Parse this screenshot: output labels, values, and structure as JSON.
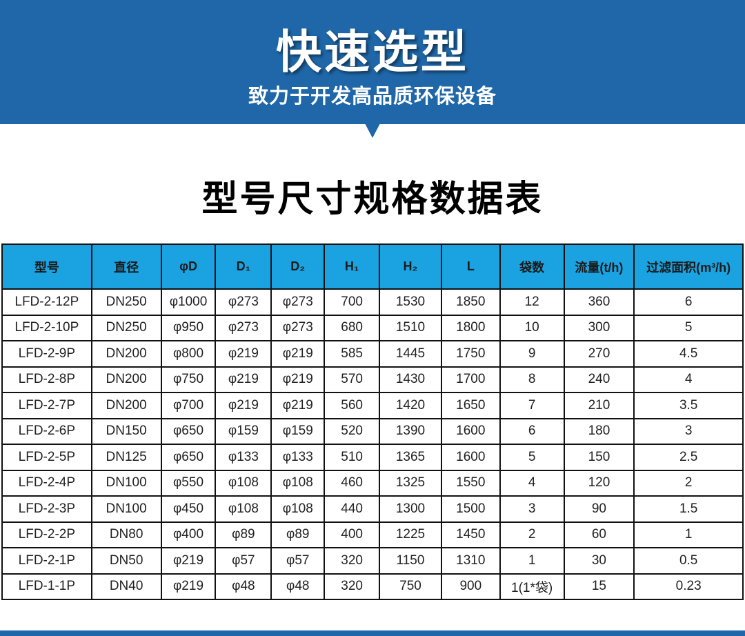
{
  "banner": {
    "title": "快速选型",
    "subtitle": "致力于开发高品质环保设备"
  },
  "section_title": "型号尺寸规格数据表",
  "table": {
    "headers": [
      "型号",
      "直径",
      "φD",
      "D₁",
      "D₂",
      "H₁",
      "H₂",
      "L",
      "袋数",
      "流量(t/h)",
      "过滤面积(m³/h)"
    ],
    "rows": [
      [
        "LFD-2-12P",
        "DN250",
        "φ1000",
        "φ273",
        "φ273",
        "700",
        "1530",
        "1850",
        "12",
        "360",
        "6"
      ],
      [
        "LFD-2-10P",
        "DN250",
        "φ950",
        "φ273",
        "φ273",
        "680",
        "1510",
        "1800",
        "10",
        "300",
        "5"
      ],
      [
        "LFD-2-9P",
        "DN200",
        "φ800",
        "φ219",
        "φ219",
        "585",
        "1445",
        "1750",
        "9",
        "270",
        "4.5"
      ],
      [
        "LFD-2-8P",
        "DN200",
        "φ750",
        "φ219",
        "φ219",
        "570",
        "1430",
        "1700",
        "8",
        "240",
        "4"
      ],
      [
        "LFD-2-7P",
        "DN200",
        "φ700",
        "φ219",
        "φ219",
        "560",
        "1420",
        "1650",
        "7",
        "210",
        "3.5"
      ],
      [
        "LFD-2-6P",
        "DN150",
        "φ650",
        "φ159",
        "φ159",
        "520",
        "1390",
        "1600",
        "6",
        "180",
        "3"
      ],
      [
        "LFD-2-5P",
        "DN125",
        "φ650",
        "φ133",
        "φ133",
        "510",
        "1365",
        "1600",
        "5",
        "150",
        "2.5"
      ],
      [
        "LFD-2-4P",
        "DN100",
        "φ550",
        "φ108",
        "φ108",
        "460",
        "1325",
        "1550",
        "4",
        "120",
        "2"
      ],
      [
        "LFD-2-3P",
        "DN100",
        "φ450",
        "φ108",
        "φ108",
        "440",
        "1300",
        "1500",
        "3",
        "90",
        "1.5"
      ],
      [
        "LFD-2-2P",
        "DN80",
        "φ400",
        "φ89",
        "φ89",
        "400",
        "1225",
        "1450",
        "2",
        "60",
        "1"
      ],
      [
        "LFD-2-1P",
        "DN50",
        "φ219",
        "φ57",
        "φ57",
        "320",
        "1150",
        "1310",
        "1",
        "30",
        "0.5"
      ],
      [
        "LFD-1-1P",
        "DN40",
        "φ219",
        "φ48",
        "φ48",
        "320",
        "750",
        "900",
        "1(1*袋)",
        "15",
        "0.23"
      ]
    ]
  },
  "colors": {
    "banner": "#1f67a8",
    "table_header": "#1aa3e0"
  }
}
